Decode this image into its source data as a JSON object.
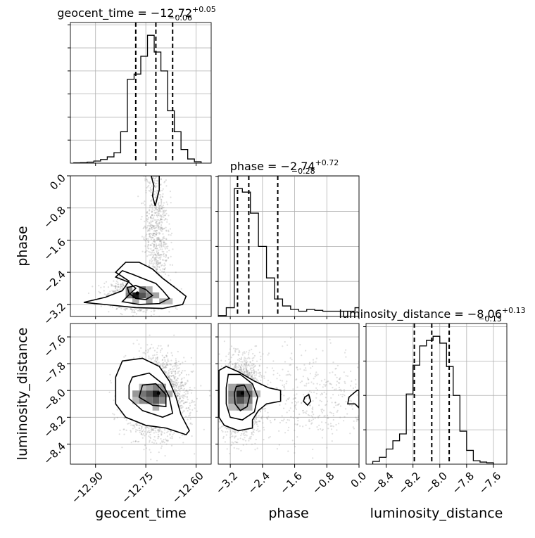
{
  "chart_data": {
    "type": "corner",
    "parameters": [
      "geocent_time",
      "phase",
      "luminosity_distance"
    ],
    "axis_labels": [
      "geocent_time",
      "phase",
      "luminosity_distance"
    ],
    "titles": [
      {
        "text": "geocent_time = −12.72",
        "sup": "+0.05",
        "sub": "−0.06"
      },
      {
        "text": "phase = −2.74",
        "sup": "+0.72",
        "sub": "−0.28"
      },
      {
        "text": "luminosity_distance = −8.06",
        "sup": "+0.13",
        "sub": "−0.13"
      }
    ],
    "ranges": [
      [
        -12.975,
        -12.555
      ],
      [
        -3.5,
        0.0
      ],
      [
        -8.55,
        -7.5
      ]
    ],
    "ticks": [
      {
        "values": [
          -12.9,
          -12.75,
          -12.6
        ],
        "labels": [
          "−12.90",
          "−12.75",
          "−12.60"
        ]
      },
      {
        "values": [
          -3.2,
          -2.4,
          -1.6,
          -0.8,
          0.0
        ],
        "labels": [
          "−3.2",
          "−2.4",
          "−1.6",
          "−0.8",
          "0.0"
        ]
      },
      {
        "values": [
          -8.4,
          -8.2,
          -8.0,
          -7.8,
          -7.6
        ],
        "labels": [
          "−8.4",
          "−8.2",
          "−8.0",
          "−7.8",
          "−7.6"
        ]
      }
    ],
    "quantiles": [
      [
        -12.78,
        -12.72,
        -12.67
      ],
      [
        -3.02,
        -2.74,
        -2.02
      ],
      [
        -8.19,
        -8.06,
        -7.93
      ]
    ],
    "histograms": [
      {
        "edges": [
          -12.965,
          -12.945,
          -12.925,
          -12.905,
          -12.885,
          -12.865,
          -12.845,
          -12.825,
          -12.805,
          -12.785,
          -12.765,
          -12.745,
          -12.725,
          -12.705,
          -12.685,
          -12.665,
          -12.645,
          -12.625,
          -12.605,
          -12.585
        ],
        "counts": [
          0.3,
          0.5,
          1.0,
          2.0,
          3.5,
          6.0,
          10,
          30,
          80,
          85,
          102,
          122,
          106,
          88,
          50,
          30,
          13,
          4,
          1.3
        ]
      },
      {
        "edges": [
          -3.5,
          -3.3,
          -3.1,
          -2.9,
          -2.7,
          -2.5,
          -2.3,
          -2.1,
          -1.9,
          -1.7,
          -1.5,
          -1.3,
          -1.1,
          -0.9,
          -0.7,
          -0.5,
          -0.3,
          -0.1,
          0.0
        ],
        "counts": [
          0.5,
          5,
          73,
          71,
          59,
          40,
          22,
          10,
          6,
          4,
          3,
          4,
          3.5,
          3,
          3,
          3,
          3,
          5
        ]
      },
      {
        "edges": [
          -8.5,
          -8.45,
          -8.4,
          -8.35,
          -8.3,
          -8.25,
          -8.2,
          -8.15,
          -8.1,
          -8.05,
          -8.0,
          -7.95,
          -7.9,
          -7.85,
          -7.8,
          -7.75,
          -7.7,
          -7.65,
          -7.6
        ],
        "counts": [
          2,
          5,
          11,
          17,
          22,
          51,
          72,
          86,
          90,
          93,
          88,
          71,
          50,
          24,
          10,
          2.5,
          1.5,
          1
        ]
      }
    ],
    "density_2d": [
      {
        "x": "geocent_time",
        "y": "phase",
        "blobs": [
          {
            "cx": -12.77,
            "cy": -2.95,
            "sx": 0.04,
            "sy": 0.17,
            "w": 1.0
          },
          {
            "cx": -12.72,
            "cy": -1.4,
            "sx": 0.018,
            "sy": 1.0,
            "w": 0.45
          }
        ],
        "peak": [
          -12.775,
          -2.92
        ],
        "contours": [
          [
            [
              -12.935,
              -3.15
            ],
            [
              -12.87,
              -3.02
            ],
            [
              -12.82,
              -2.86
            ],
            [
              -12.8,
              -2.62
            ],
            [
              -12.84,
              -2.4
            ],
            [
              -12.81,
              -2.15
            ],
            [
              -12.77,
              -2.15
            ],
            [
              -12.73,
              -2.32
            ],
            [
              -12.7,
              -2.55
            ],
            [
              -12.66,
              -2.8
            ],
            [
              -12.63,
              -3.0
            ],
            [
              -12.64,
              -3.2
            ],
            [
              -12.7,
              -3.3
            ],
            [
              -12.78,
              -3.28
            ],
            [
              -12.85,
              -3.22
            ]
          ],
          [
            [
              -12.84,
              -2.52
            ],
            [
              -12.82,
              -2.36
            ],
            [
              -12.79,
              -2.45
            ],
            [
              -12.76,
              -2.55
            ],
            [
              -12.72,
              -2.68
            ],
            [
              -12.7,
              -2.85
            ],
            [
              -12.68,
              -3.05
            ],
            [
              -12.71,
              -3.18
            ],
            [
              -12.77,
              -3.2
            ],
            [
              -12.82,
              -3.13
            ],
            [
              -12.8,
              -2.96
            ],
            [
              -12.78,
              -2.8
            ],
            [
              -12.8,
              -2.65
            ]
          ],
          [
            [
              -12.805,
              -2.78
            ],
            [
              -12.78,
              -2.73
            ],
            [
              -12.75,
              -2.83
            ],
            [
              -12.73,
              -2.98
            ],
            [
              -12.75,
              -3.08
            ],
            [
              -12.78,
              -3.05
            ],
            [
              -12.8,
              -2.92
            ]
          ],
          [
            [
              -12.734,
              0.0
            ],
            [
              -12.726,
              -0.25
            ],
            [
              -12.73,
              -0.5
            ],
            [
              -12.722,
              -0.75
            ],
            [
              -12.71,
              -0.35
            ],
            [
              -12.71,
              0.0
            ]
          ]
        ],
        "hist_cells": [
          [
            -12.79,
            -12.77,
            -3.05,
            -2.9,
            1.0
          ],
          [
            -12.77,
            -12.75,
            -3.05,
            -2.9,
            0.75
          ],
          [
            -12.77,
            -12.75,
            -2.9,
            -2.75,
            0.6
          ],
          [
            -12.81,
            -12.79,
            -3.05,
            -2.9,
            0.55
          ],
          [
            -12.81,
            -12.79,
            -2.9,
            -2.75,
            0.45
          ],
          [
            -12.75,
            -12.73,
            -3.05,
            -2.9,
            0.5
          ],
          [
            -12.75,
            -12.73,
            -3.2,
            -3.05,
            0.45
          ],
          [
            -12.73,
            -12.71,
            -3.05,
            -2.9,
            0.4
          ],
          [
            -12.71,
            -12.69,
            -3.2,
            -3.05,
            0.35
          ],
          [
            -12.79,
            -12.77,
            -3.2,
            -3.05,
            0.35
          ],
          [
            -12.75,
            -12.73,
            -2.9,
            -2.75,
            0.35
          ],
          [
            -12.69,
            -12.67,
            -3.2,
            -3.05,
            0.3
          ]
        ]
      },
      {
        "x": "geocent_time",
        "y": "luminosity_distance",
        "blobs": [
          {
            "cx": -12.72,
            "cy": -8.05,
            "sx": 0.045,
            "sy": 0.14,
            "w": 1.0
          }
        ],
        "peak": [
          -12.712,
          -8.02
        ],
        "contours": [
          [
            [
              -12.82,
              -7.78
            ],
            [
              -12.76,
              -7.76
            ],
            [
              -12.71,
              -7.82
            ],
            [
              -12.68,
              -7.93
            ],
            [
              -12.66,
              -8.05
            ],
            [
              -12.645,
              -8.18
            ],
            [
              -12.62,
              -8.3
            ],
            [
              -12.63,
              -8.33
            ],
            [
              -12.69,
              -8.28
            ],
            [
              -12.75,
              -8.26
            ],
            [
              -12.81,
              -8.2
            ],
            [
              -12.84,
              -8.1
            ],
            [
              -12.84,
              -7.9
            ]
          ],
          [
            [
              -12.79,
              -7.9
            ],
            [
              -12.74,
              -7.87
            ],
            [
              -12.7,
              -7.95
            ],
            [
              -12.68,
              -8.05
            ],
            [
              -12.67,
              -8.17
            ],
            [
              -12.7,
              -8.2
            ],
            [
              -12.76,
              -8.15
            ],
            [
              -12.8,
              -8.06
            ],
            [
              -12.8,
              -7.96
            ]
          ],
          [
            [
              -12.76,
              -7.96
            ],
            [
              -12.72,
              -7.95
            ],
            [
              -12.69,
              -8.03
            ],
            [
              -12.69,
              -8.12
            ],
            [
              -12.73,
              -8.11
            ],
            [
              -12.77,
              -8.05
            ]
          ]
        ],
        "hist_cells": [
          [
            -12.73,
            -12.71,
            -8.05,
            -8.0,
            1.0
          ],
          [
            -12.75,
            -12.73,
            -8.05,
            -8.0,
            0.75
          ],
          [
            -12.71,
            -12.69,
            -8.05,
            -8.0,
            0.7
          ],
          [
            -12.73,
            -12.71,
            -8.1,
            -8.05,
            0.7
          ],
          [
            -12.75,
            -12.73,
            -8.1,
            -8.05,
            0.6
          ],
          [
            -12.77,
            -12.75,
            -8.05,
            -8.0,
            0.6
          ],
          [
            -12.73,
            -12.71,
            -8.0,
            -7.95,
            0.55
          ],
          [
            -12.71,
            -12.69,
            -8.1,
            -8.05,
            0.5
          ],
          [
            -12.79,
            -12.77,
            -8.05,
            -8.0,
            0.45
          ],
          [
            -12.77,
            -12.75,
            -8.1,
            -8.05,
            0.5
          ],
          [
            -12.75,
            -12.73,
            -8.0,
            -7.95,
            0.4
          ],
          [
            -12.71,
            -12.69,
            -8.0,
            -7.95,
            0.45
          ],
          [
            -12.69,
            -12.67,
            -8.05,
            -8.0,
            0.35
          ],
          [
            -12.73,
            -12.71,
            -8.15,
            -8.1,
            0.35
          ],
          [
            -12.77,
            -12.75,
            -8.0,
            -7.95,
            0.3
          ],
          [
            -12.79,
            -12.77,
            -8.1,
            -8.05,
            0.3
          ]
        ]
      },
      {
        "x": "phase",
        "y": "luminosity_distance",
        "blobs": [
          {
            "cx": -2.95,
            "cy": -8.05,
            "sx": 0.25,
            "sy": 0.14,
            "w": 1.0
          },
          {
            "cx": -1.3,
            "cy": -8.05,
            "sx": 0.9,
            "sy": 0.18,
            "w": 0.22
          }
        ],
        "peak": [
          -2.9,
          -8.02
        ],
        "contours": [
          [
            [
              -3.48,
              -7.85
            ],
            [
              -3.3,
              -7.82
            ],
            [
              -3.0,
              -7.86
            ],
            [
              -2.6,
              -7.93
            ],
            [
              -2.25,
              -7.98
            ],
            [
              -1.95,
              -8.0
            ],
            [
              -1.95,
              -8.08
            ],
            [
              -2.3,
              -8.1
            ],
            [
              -2.5,
              -8.15
            ],
            [
              -2.65,
              -8.22
            ],
            [
              -2.65,
              -8.28
            ],
            [
              -3.0,
              -8.3
            ],
            [
              -3.35,
              -8.26
            ],
            [
              -3.48,
              -8.2
            ]
          ],
          [
            [
              -3.25,
              -7.88
            ],
            [
              -2.95,
              -7.88
            ],
            [
              -2.65,
              -7.95
            ],
            [
              -2.52,
              -8.05
            ],
            [
              -2.6,
              -8.16
            ],
            [
              -2.9,
              -8.22
            ],
            [
              -3.2,
              -8.2
            ],
            [
              -3.3,
              -8.1
            ],
            [
              -3.3,
              -7.98
            ]
          ],
          [
            [
              -3.05,
              -7.97
            ],
            [
              -2.85,
              -7.96
            ],
            [
              -2.72,
              -8.04
            ],
            [
              -2.78,
              -8.12
            ],
            [
              -2.95,
              -8.15
            ],
            [
              -3.08,
              -8.1
            ],
            [
              -3.1,
              -8.02
            ]
          ],
          [
            [
              -1.35,
              -8.05
            ],
            [
              -1.25,
              -8.03
            ],
            [
              -1.2,
              -8.08
            ],
            [
              -1.28,
              -8.11
            ],
            [
              -1.38,
              -8.08
            ]
          ],
          [
            [
              -0.25,
              -8.05
            ],
            [
              -0.05,
              -8.0
            ],
            [
              0.0,
              -8.0
            ],
            [
              0.0,
              -8.13
            ],
            [
              -0.1,
              -8.1
            ],
            [
              -0.28,
              -8.1
            ]
          ]
        ],
        "hist_cells": [
          [
            -3.05,
            -2.85,
            -8.05,
            -8.0,
            1.0
          ],
          [
            -3.05,
            -2.85,
            -8.1,
            -8.05,
            0.75
          ],
          [
            -2.85,
            -2.65,
            -8.05,
            -8.0,
            0.7
          ],
          [
            -3.05,
            -2.85,
            -8.0,
            -7.95,
            0.6
          ],
          [
            -2.85,
            -2.65,
            -8.1,
            -8.05,
            0.55
          ],
          [
            -3.25,
            -3.05,
            -8.05,
            -8.0,
            0.55
          ],
          [
            -3.25,
            -3.05,
            -8.1,
            -8.05,
            0.5
          ],
          [
            -2.85,
            -2.65,
            -8.0,
            -7.95,
            0.45
          ],
          [
            -3.25,
            -3.05,
            -8.0,
            -7.95,
            0.4
          ],
          [
            -3.05,
            -2.85,
            -8.15,
            -8.1,
            0.4
          ],
          [
            -2.85,
            -2.65,
            -8.15,
            -8.1,
            0.3
          ],
          [
            -3.25,
            -3.05,
            -8.15,
            -8.1,
            0.3
          ],
          [
            -2.65,
            -2.45,
            -8.05,
            -8.0,
            0.3
          ]
        ]
      }
    ],
    "grid": true,
    "colors": {
      "ink": "#000000",
      "grid": "#b0b0b0",
      "scatter": "#8c8c8c"
    }
  }
}
